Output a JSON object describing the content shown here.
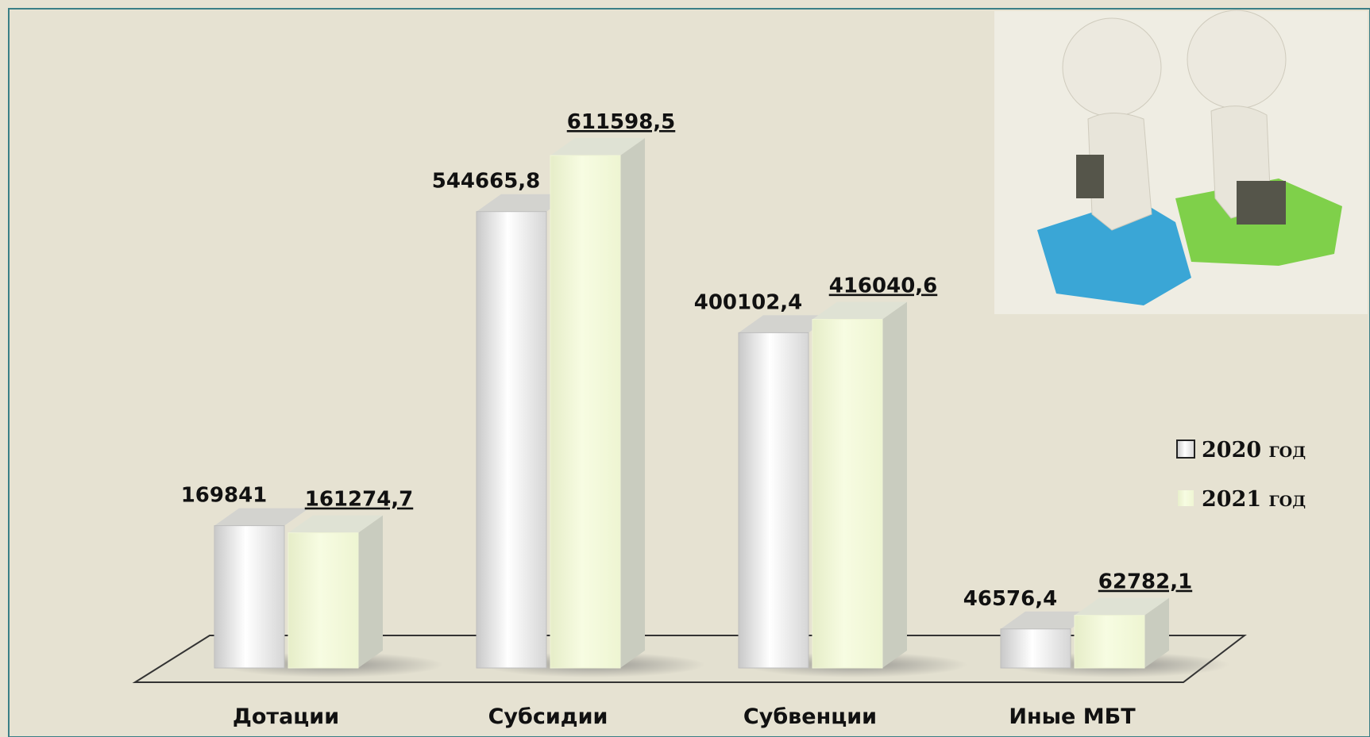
{
  "chart_data": {
    "type": "bar3d",
    "categories": [
      "Дотации",
      "Субсидии",
      "Субвенции",
      "Иные МБТ"
    ],
    "series": [
      {
        "name": "2020 год",
        "color": "#dcdcdc",
        "values": [
          169841,
          544665.8,
          400102.4,
          46576.4
        ],
        "value_labels": [
          "169841",
          "544665,8",
          "400102,4",
          "46576,4"
        ]
      },
      {
        "name": "2021 год",
        "color": "#f3f9d8",
        "values": [
          161274.7,
          611598.5,
          416040.6,
          62782.1
        ],
        "value_labels": [
          "161274,7",
          "611598,5",
          "416040,6",
          "62782,1"
        ]
      }
    ]
  }
}
